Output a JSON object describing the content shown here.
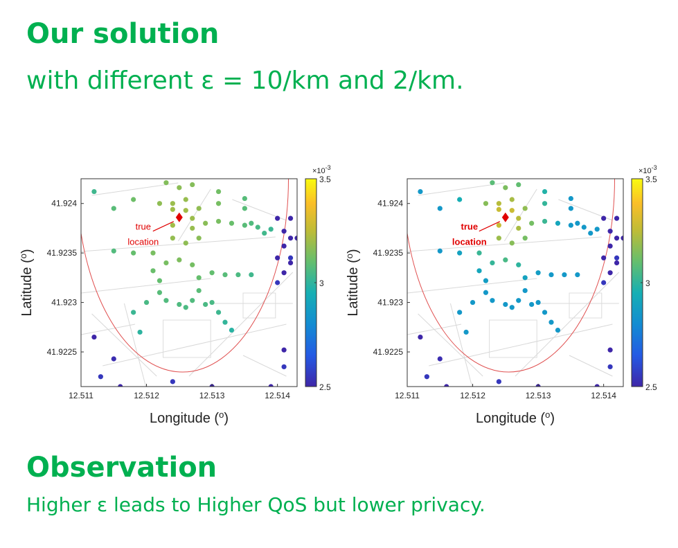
{
  "slide": {
    "title": "Our solution",
    "subtitle": "with different ε = 10/km and 2/km.",
    "observation_title": "Observation",
    "observation_text": "Higher ε leads to Higher QoS but lower privacy."
  },
  "colors": {
    "green_text": "#00b050",
    "marker": "#e00000",
    "ellipse": "#e05050"
  },
  "chart_data": [
    {
      "type": "scatter",
      "title": "",
      "xlabel": "Longitude (o)",
      "ylabel": "Latitude (o)",
      "xlim": [
        12.511,
        12.5143
      ],
      "ylim": [
        41.92215,
        41.92425
      ],
      "xticks": [
        "12.511",
        "12.512",
        "12.513",
        "12.514"
      ],
      "yticks": [
        "41.924",
        "41.9235",
        "41.923",
        "41.9225"
      ],
      "colorbar": {
        "min": 2.5,
        "max": 3.5,
        "ticks": [
          "3.5",
          "3",
          "2.5"
        ],
        "exponent": "×10-3"
      },
      "annotation": {
        "text_line1": "true",
        "text_line2": "location",
        "x": 12.5125,
        "y": 41.92386
      },
      "value_profile": "high",
      "grid": false,
      "points_low": [
        {
          "x": 12.5113,
          "y": 41.92225,
          "v": 2.55
        },
        {
          "x": 12.5116,
          "y": 41.92215,
          "v": 2.5
        },
        {
          "x": 12.5124,
          "y": 41.9222,
          "v": 2.55
        },
        {
          "x": 12.513,
          "y": 41.92215,
          "v": 2.5
        },
        {
          "x": 12.5139,
          "y": 41.92215,
          "v": 2.5
        },
        {
          "x": 12.5141,
          "y": 41.92252,
          "v": 2.5
        },
        {
          "x": 12.5141,
          "y": 41.92235,
          "v": 2.55
        },
        {
          "x": 12.5112,
          "y": 41.92265,
          "v": 2.5
        },
        {
          "x": 12.5115,
          "y": 41.92243,
          "v": 2.52
        },
        {
          "x": 12.514,
          "y": 41.92385,
          "v": 2.5
        },
        {
          "x": 12.5142,
          "y": 41.92385,
          "v": 2.5
        },
        {
          "x": 12.5141,
          "y": 41.92372,
          "v": 2.5
        },
        {
          "x": 12.5142,
          "y": 41.92365,
          "v": 2.5
        },
        {
          "x": 12.5143,
          "y": 41.92365,
          "v": 2.5
        },
        {
          "x": 12.5141,
          "y": 41.92357,
          "v": 2.5
        },
        {
          "x": 12.5142,
          "y": 41.92345,
          "v": 2.55
        },
        {
          "x": 12.514,
          "y": 41.92345,
          "v": 2.5
        },
        {
          "x": 12.5141,
          "y": 41.9233,
          "v": 2.5
        },
        {
          "x": 12.514,
          "y": 41.9232,
          "v": 2.55
        },
        {
          "x": 12.5142,
          "y": 41.9234,
          "v": 2.5
        }
      ],
      "points_mid": [
        {
          "x": 12.5112,
          "y": 41.92412,
          "v": 0
        },
        {
          "x": 12.5115,
          "y": 41.92395,
          "v": 0
        },
        {
          "x": 12.5109,
          "y": 41.92395,
          "v": 0
        },
        {
          "x": 12.5118,
          "y": 41.92404,
          "v": 0
        },
        {
          "x": 12.5123,
          "y": 41.92421,
          "v": 0
        },
        {
          "x": 12.5125,
          "y": 41.92416,
          "v": 0
        },
        {
          "x": 12.5127,
          "y": 41.92419,
          "v": 0
        },
        {
          "x": 12.5131,
          "y": 41.92412,
          "v": 0
        },
        {
          "x": 12.5131,
          "y": 41.924,
          "v": 0
        },
        {
          "x": 12.5135,
          "y": 41.92405,
          "v": 0
        },
        {
          "x": 12.5135,
          "y": 41.92395,
          "v": 0
        },
        {
          "x": 12.5136,
          "y": 41.9238,
          "v": 0
        },
        {
          "x": 12.5122,
          "y": 41.924,
          "v": 0
        },
        {
          "x": 12.5124,
          "y": 41.924,
          "v": 0
        },
        {
          "x": 12.5126,
          "y": 41.92404,
          "v": 0
        },
        {
          "x": 12.5128,
          "y": 41.92395,
          "v": 0
        },
        {
          "x": 12.5124,
          "y": 41.92394,
          "v": 0
        },
        {
          "x": 12.5126,
          "y": 41.92393,
          "v": 0
        },
        {
          "x": 12.5127,
          "y": 41.92385,
          "v": 0
        },
        {
          "x": 12.5127,
          "y": 41.92375,
          "v": 0
        },
        {
          "x": 12.5128,
          "y": 41.92365,
          "v": 0
        },
        {
          "x": 12.5126,
          "y": 41.9236,
          "v": 0
        },
        {
          "x": 12.5124,
          "y": 41.92365,
          "v": 0
        },
        {
          "x": 12.5124,
          "y": 41.92378,
          "v": 0
        },
        {
          "x": 12.5129,
          "y": 41.9238,
          "v": 0
        },
        {
          "x": 12.5131,
          "y": 41.92382,
          "v": 0
        },
        {
          "x": 12.5133,
          "y": 41.9238,
          "v": 0
        },
        {
          "x": 12.5135,
          "y": 41.92378,
          "v": 0
        },
        {
          "x": 12.5137,
          "y": 41.92376,
          "v": 0
        },
        {
          "x": 12.5139,
          "y": 41.92374,
          "v": 0
        },
        {
          "x": 12.5138,
          "y": 41.9237,
          "v": 0
        },
        {
          "x": 12.5121,
          "y": 41.9235,
          "v": 0
        },
        {
          "x": 12.5118,
          "y": 41.9235,
          "v": 0
        },
        {
          "x": 12.5115,
          "y": 41.92352,
          "v": 0
        },
        {
          "x": 12.5121,
          "y": 41.92332,
          "v": 0
        },
        {
          "x": 12.5122,
          "y": 41.92322,
          "v": 0
        },
        {
          "x": 12.5122,
          "y": 41.9231,
          "v": 0
        },
        {
          "x": 12.5123,
          "y": 41.92302,
          "v": 0
        },
        {
          "x": 12.5125,
          "y": 41.92298,
          "v": 0
        },
        {
          "x": 12.5127,
          "y": 41.92302,
          "v": 0
        },
        {
          "x": 12.5128,
          "y": 41.92312,
          "v": 0
        },
        {
          "x": 12.5128,
          "y": 41.92325,
          "v": 0
        },
        {
          "x": 12.5127,
          "y": 41.92338,
          "v": 0
        },
        {
          "x": 12.5125,
          "y": 41.92343,
          "v": 0
        },
        {
          "x": 12.5123,
          "y": 41.9234,
          "v": 0
        },
        {
          "x": 12.513,
          "y": 41.9233,
          "v": 0
        },
        {
          "x": 12.5132,
          "y": 41.92328,
          "v": 0
        },
        {
          "x": 12.5134,
          "y": 41.92328,
          "v": 0
        },
        {
          "x": 12.5136,
          "y": 41.92328,
          "v": 0
        },
        {
          "x": 12.513,
          "y": 41.923,
          "v": 0
        },
        {
          "x": 12.5131,
          "y": 41.9229,
          "v": 0
        },
        {
          "x": 12.5132,
          "y": 41.9228,
          "v": 0
        },
        {
          "x": 12.5133,
          "y": 41.92272,
          "v": 0
        },
        {
          "x": 12.512,
          "y": 41.923,
          "v": 0
        },
        {
          "x": 12.5118,
          "y": 41.9229,
          "v": 0
        },
        {
          "x": 12.5129,
          "y": 41.92298,
          "v": 0
        },
        {
          "x": 12.5126,
          "y": 41.92295,
          "v": 0
        },
        {
          "x": 12.5119,
          "y": 41.9227,
          "v": 0
        }
      ]
    },
    {
      "type": "scatter",
      "title": "",
      "xlabel": "Longitude (o)",
      "ylabel": "Latitude (o)",
      "xlim": [
        12.511,
        12.5143
      ],
      "ylim": [
        41.92215,
        41.92425
      ],
      "xticks": [
        "12.511",
        "12.512",
        "12.513",
        "12.514"
      ],
      "yticks": [
        "41.924",
        "41.9235",
        "41.923",
        "41.9225"
      ],
      "colorbar": {
        "min": 2.5,
        "max": 3.5,
        "ticks": [
          "3.5",
          "3",
          "2.5"
        ],
        "exponent": "×10-3"
      },
      "annotation": {
        "text_line1": "true",
        "text_line2": "location",
        "x": 12.5125,
        "y": 41.92386
      },
      "value_profile": "steep",
      "grid": false
    }
  ]
}
